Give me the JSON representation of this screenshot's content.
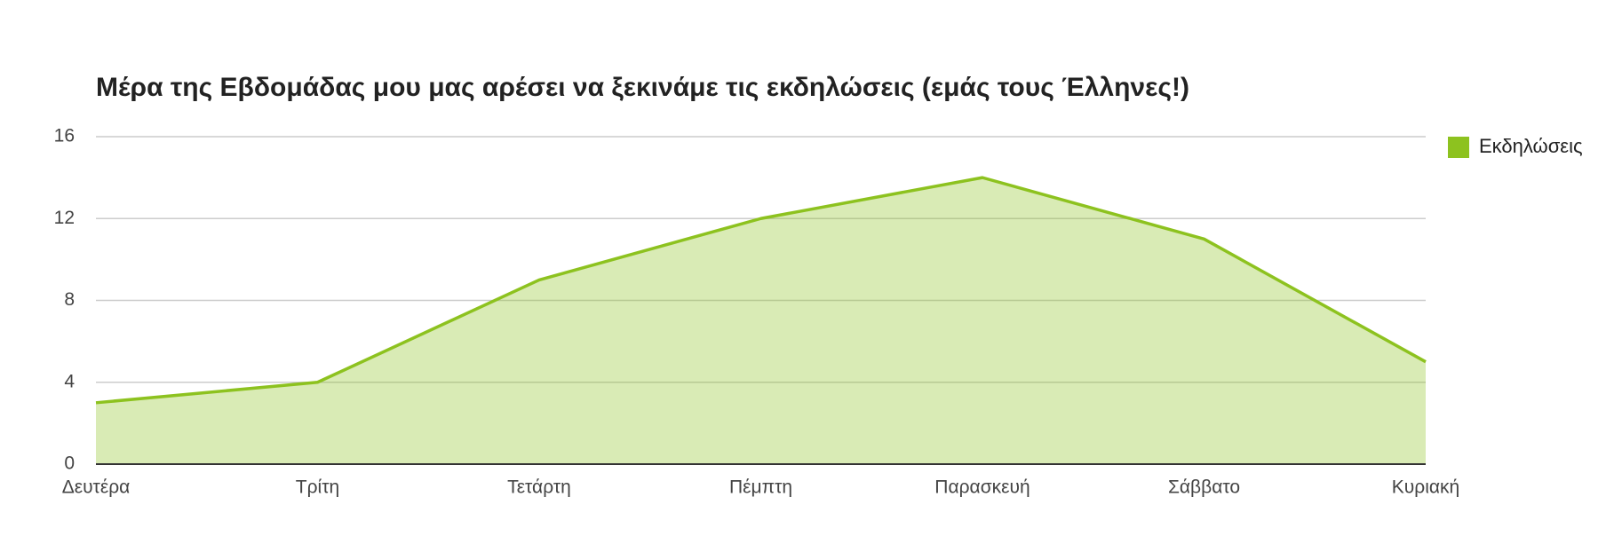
{
  "chart_data": {
    "type": "area",
    "title": "Μέρα της Εβδομάδας μου μας αρέσει να ξεκινάμε τις εκδηλώσεις (εμάς τους Έλληνες!)",
    "categories": [
      "Δευτέρα",
      "Τρίτη",
      "Τετάρτη",
      "Πέμπτη",
      "Παρασκευή",
      "Σάββατο",
      "Κυριακή"
    ],
    "series": [
      {
        "name": "Εκδηλώσεις",
        "color": "#8dc21f",
        "values": [
          3,
          4,
          9,
          12,
          14,
          11,
          5
        ]
      }
    ],
    "ylim": [
      0,
      16
    ],
    "yticks": [
      0,
      4,
      8,
      12,
      16
    ],
    "grid": true,
    "legend": "right"
  }
}
